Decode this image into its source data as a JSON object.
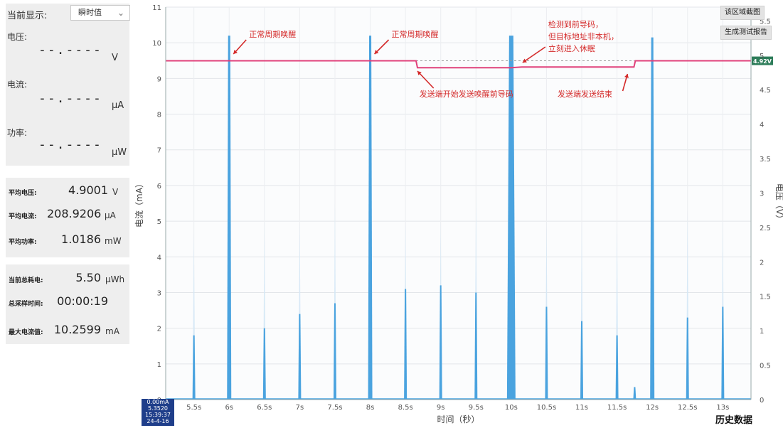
{
  "left_panel": {
    "display_label": "当前显示:",
    "display_mode": "瞬时值",
    "voltage": {
      "label": "电压:",
      "value": "--.----",
      "unit": "V"
    },
    "current": {
      "label": "电流:",
      "value": "--.----",
      "unit": "μA"
    },
    "power": {
      "label": "功率:",
      "value": "--.----",
      "unit": "μW"
    },
    "averages": [
      {
        "label": "平均电压:",
        "value": "4.9001",
        "unit": "V"
      },
      {
        "label": "平均电流:",
        "value": "208.9206",
        "unit": "μA"
      },
      {
        "label": "平均功率:",
        "value": "1.0186",
        "unit": "mW"
      }
    ],
    "totals": [
      {
        "label": "当前总耗电:",
        "value": "5.50",
        "unit": "μWh"
      },
      {
        "label": "总采样时间:",
        "value": "00:00:19",
        "unit": ""
      },
      {
        "label": "最大电流值:",
        "value": "10.2599",
        "unit": "mA"
      }
    ]
  },
  "toolbar": {
    "screenshot_label": "该区域截图",
    "report_label": "生成测试报告"
  },
  "history_label": "历史数据",
  "cursor": {
    "top_value": "0.00mA",
    "value": "5.3520",
    "time": "15:39:37",
    "date": "24-4-16"
  },
  "chart_data": {
    "type": "line",
    "xlabel": "时间（秒）",
    "ylabel_left": "电流（mA）",
    "ylabel_right": "电压（V）",
    "xlim": [
      5.1,
      13.4
    ],
    "ylim_left": [
      0,
      11
    ],
    "ylim_right": [
      0,
      5.7
    ],
    "x_ticks": [
      "5.5s",
      "6s",
      "6.5s",
      "7s",
      "7.5s",
      "8s",
      "8.5s",
      "9s",
      "9.5s",
      "10s",
      "10.5s",
      "11s",
      "11.5s",
      "12s",
      "12.5s",
      "13s"
    ],
    "y_left_ticks": [
      0,
      1,
      2,
      3,
      4,
      5,
      6,
      7,
      8,
      9,
      10,
      11
    ],
    "y_right_ticks": [
      "0",
      "0.5",
      "1",
      "1.5",
      "2",
      "2.5",
      "3",
      "3.5",
      "4",
      "4.5",
      "5",
      "5.5"
    ],
    "voltage_marker": "4.92V",
    "grid": true,
    "series": [
      {
        "name": "电流",
        "color": "#4aa3df",
        "peaks": [
          {
            "x": 5.5,
            "y": 1.8
          },
          {
            "x": 6.0,
            "y": 10.2
          },
          {
            "x": 6.5,
            "y": 2.0
          },
          {
            "x": 7.0,
            "y": 2.4
          },
          {
            "x": 7.5,
            "y": 2.7
          },
          {
            "x": 8.0,
            "y": 10.2
          },
          {
            "x": 8.5,
            "y": 3.1
          },
          {
            "x": 9.0,
            "y": 3.2
          },
          {
            "x": 9.5,
            "y": 3.0
          },
          {
            "x": 10.0,
            "y": 10.2
          },
          {
            "x": 10.5,
            "y": 2.6
          },
          {
            "x": 11.0,
            "y": 2.2
          },
          {
            "x": 11.5,
            "y": 1.8
          },
          {
            "x": 11.75,
            "y": 0.35
          },
          {
            "x": 12.0,
            "y": 10.15
          },
          {
            "x": 12.5,
            "y": 2.3
          },
          {
            "x": 13.0,
            "y": 2.6
          }
        ],
        "background_peaks": [
          {
            "x": 5.5,
            "y": 4.7
          },
          {
            "x": 6.5,
            "y": 5.0
          },
          {
            "x": 7.0,
            "y": 5.0
          },
          {
            "x": 7.5,
            "y": 5.5
          },
          {
            "x": 8.5,
            "y": 5.0
          },
          {
            "x": 9.0,
            "y": 5.0
          },
          {
            "x": 9.5,
            "y": 5.8
          },
          {
            "x": 10.5,
            "y": 5.0
          },
          {
            "x": 11.0,
            "y": 5.0
          },
          {
            "x": 11.5,
            "y": 5.0
          },
          {
            "x": 12.5,
            "y": 5.3
          },
          {
            "x": 13.0,
            "y": 5.1
          }
        ]
      },
      {
        "name": "电压",
        "color": "#e0407a",
        "points": [
          {
            "x": 5.1,
            "y": 4.92
          },
          {
            "x": 8.65,
            "y": 4.92
          },
          {
            "x": 8.67,
            "y": 4.82
          },
          {
            "x": 10.0,
            "y": 4.82
          },
          {
            "x": 10.15,
            "y": 4.83
          },
          {
            "x": 11.74,
            "y": 4.83
          },
          {
            "x": 11.76,
            "y": 4.92
          },
          {
            "x": 13.4,
            "y": 4.92
          }
        ]
      }
    ],
    "annotations": [
      {
        "text": "正常周期唤醒",
        "x": 6.0
      },
      {
        "text": "正常周期唤醒",
        "x": 8.0
      },
      {
        "text": "检测到前导码，",
        "x": 10.0
      },
      {
        "text": "但目标地址非本机，",
        "x": 10.0
      },
      {
        "text": "立刻进入休眠",
        "x": 10.0
      },
      {
        "text": "发送端开始发送唤醒前导码",
        "x": 8.65
      },
      {
        "text": "发送端发送结束",
        "x": 11.75
      }
    ]
  }
}
